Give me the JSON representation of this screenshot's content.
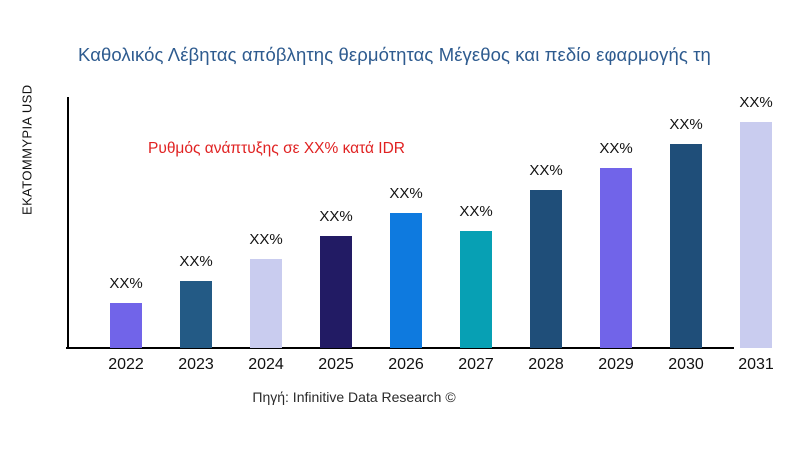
{
  "title": {
    "text": "Καθολικός Λέβητας απόβλητης θερμότητας Μέγεθος και πεδίο εφαρμογής τη",
    "color": "#2E5B8F"
  },
  "y_axis_label": "ΕΚΑΤΟΜΜΥΡΙΑ USD",
  "annotation": {
    "text": "Ρυθμός ανάπτυξης σε XX% κατά IDR",
    "color": "#E02222"
  },
  "source": "Πηγή: Infinitive Data Research ©",
  "chart_data": {
    "type": "bar",
    "title": "Καθολικός Λέβητας απόβλητης θερμότητας Μέγεθος και πεδίο εφαρμογής τη",
    "xlabel": "",
    "ylabel": "ΕΚΑΤΟΜΜΥΡΙΑ USD",
    "categories": [
      "2022",
      "2023",
      "2024",
      "2025",
      "2026",
      "2027",
      "2028",
      "2029",
      "2030",
      "2031"
    ],
    "bar_labels": [
      "XX%",
      "XX%",
      "XX%",
      "XX%",
      "XX%",
      "XX%",
      "XX%",
      "XX%",
      "XX%",
      "XX%"
    ],
    "values": [
      45,
      67,
      89,
      112,
      135,
      117,
      158,
      180,
      204,
      226
    ],
    "value_unit": "estimated bar height in px (no numeric y-axis shown; all bars labeled XX%)",
    "colors": [
      "#7164E9",
      "#235A85",
      "#C9CCEF",
      "#221B64",
      "#0E7ADF",
      "#07A0B4",
      "#1F4E79",
      "#7164E9",
      "#1F4E79",
      "#C9CCEF"
    ],
    "grid": false,
    "legend": false,
    "annotation": "Ρυθμός ανάπτυξης σε XX% κατά IDR"
  }
}
